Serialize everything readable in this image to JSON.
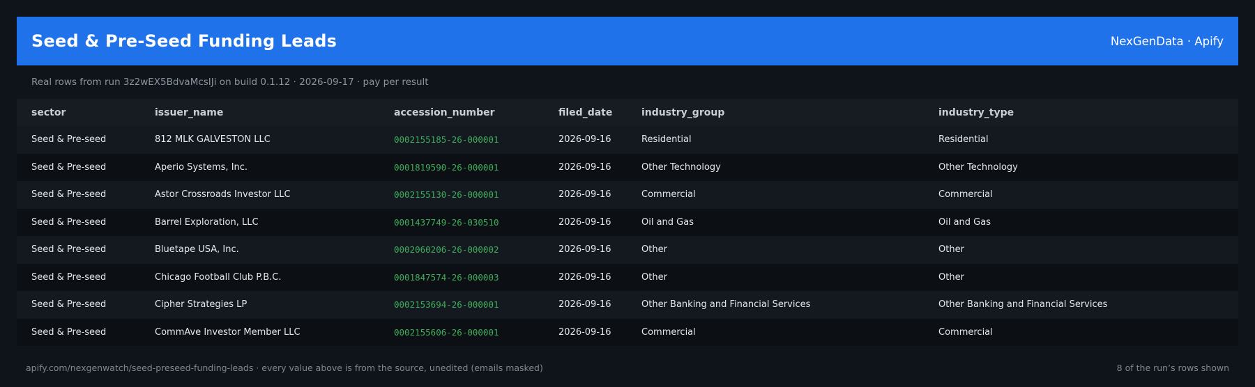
{
  "header": {
    "title": "Seed & Pre-Seed Funding Leads",
    "brand": "NexGenData · Apify"
  },
  "subtitle": "Real rows from run 3z2wEX5BdvaMcsIJi on build 0.1.12 · 2026-09-17 · pay per result",
  "table": {
    "columns": [
      "sector",
      "issuer_name",
      "accession_number",
      "filed_date",
      "industry_group",
      "industry_type"
    ],
    "rows": [
      [
        "Seed & Pre-seed",
        "812 MLK GALVESTON LLC",
        "0002155185-26-000001",
        "2026-09-16",
        "Residential",
        "Residential"
      ],
      [
        "Seed & Pre-seed",
        "Aperio Systems, Inc.",
        "0001819590-26-000001",
        "2026-09-16",
        "Other Technology",
        "Other Technology"
      ],
      [
        "Seed & Pre-seed",
        "Astor Crossroads Investor LLC",
        "0002155130-26-000001",
        "2026-09-16",
        "Commercial",
        "Commercial"
      ],
      [
        "Seed & Pre-seed",
        "Barrel Exploration, LLC",
        "0001437749-26-030510",
        "2026-09-16",
        "Oil and Gas",
        "Oil and Gas"
      ],
      [
        "Seed & Pre-seed",
        "Bluetape USA, Inc.",
        "0002060206-26-000002",
        "2026-09-16",
        "Other",
        "Other"
      ],
      [
        "Seed & Pre-seed",
        "Chicago Football Club P.B.C.",
        "0001847574-26-000003",
        "2026-09-16",
        "Other",
        "Other"
      ],
      [
        "Seed & Pre-seed",
        "Cipher Strategies LP",
        "0002153694-26-000001",
        "2026-09-16",
        "Other Banking and Financial Services",
        "Other Banking and Financial Services"
      ],
      [
        "Seed & Pre-seed",
        "CommAve Investor Member LLC",
        "0002155606-26-000001",
        "2026-09-16",
        "Commercial",
        "Commercial"
      ]
    ]
  },
  "footer": {
    "source": "apify.com/nexgenwatch/seed-preseed-funding-leads  ·  every value above is from the source, unedited (emails masked)",
    "count": "8 of the run’s rows shown"
  },
  "colors": {
    "accent": "#1f72e9",
    "background": "#0f141b",
    "accession_text": "#3fae5b"
  }
}
